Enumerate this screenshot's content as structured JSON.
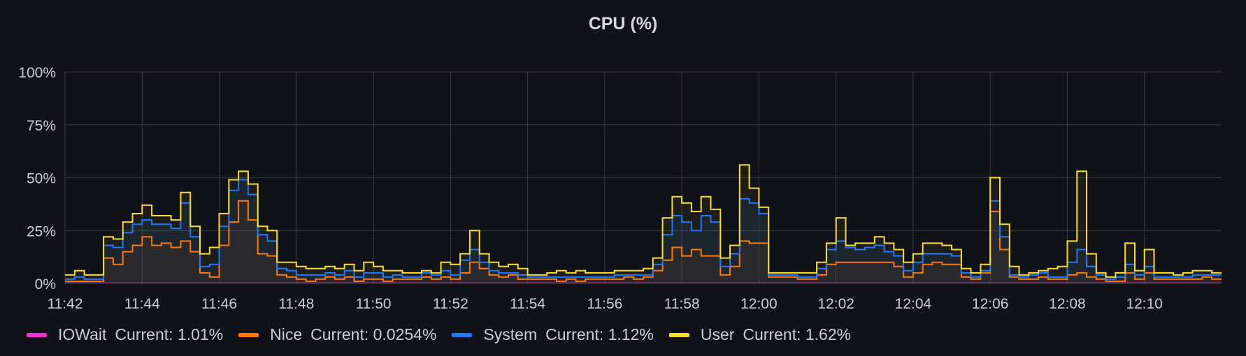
{
  "panel": {
    "title": "CPU (%)"
  },
  "chart_data": {
    "type": "area",
    "title": "CPU (%)",
    "stacked": true,
    "y_ticks": [
      "0%",
      "25%",
      "50%",
      "75%",
      "100%"
    ],
    "ylim": [
      0,
      100
    ],
    "x_ticks": [
      "11:42",
      "11:44",
      "11:46",
      "11:48",
      "11:50",
      "11:52",
      "11:54",
      "11:56",
      "11:58",
      "12:00",
      "12:02",
      "12:04",
      "12:06",
      "12:08",
      "12:10"
    ],
    "x_tick_minutes": [
      702,
      704,
      706,
      708,
      710,
      712,
      714,
      716,
      718,
      720,
      722,
      724,
      726,
      728,
      730
    ],
    "xlim_minutes": [
      702,
      732
    ],
    "legend_placement": "bottom-left",
    "grid": true,
    "samples": [
      {
        "t": 702.0,
        "n": 1,
        "s": 2,
        "u": 4
      },
      {
        "t": 702.25,
        "n": 1,
        "s": 3,
        "u": 6
      },
      {
        "t": 702.5,
        "n": 1,
        "s": 2,
        "u": 4
      },
      {
        "t": 702.75,
        "n": 1,
        "s": 2,
        "u": 4
      },
      {
        "t": 703.0,
        "n": 12,
        "s": 18,
        "u": 22
      },
      {
        "t": 703.25,
        "n": 9,
        "s": 17,
        "u": 21
      },
      {
        "t": 703.5,
        "n": 15,
        "s": 24,
        "u": 29
      },
      {
        "t": 703.75,
        "n": 18,
        "s": 28,
        "u": 33
      },
      {
        "t": 704.0,
        "n": 22,
        "s": 30,
        "u": 37
      },
      {
        "t": 704.25,
        "n": 18,
        "s": 28,
        "u": 32
      },
      {
        "t": 704.5,
        "n": 19,
        "s": 28,
        "u": 32
      },
      {
        "t": 704.75,
        "n": 17,
        "s": 26,
        "u": 30
      },
      {
        "t": 705.0,
        "n": 20,
        "s": 38,
        "u": 43
      },
      {
        "t": 705.25,
        "n": 15,
        "s": 22,
        "u": 27
      },
      {
        "t": 705.5,
        "n": 5,
        "s": 8,
        "u": 14
      },
      {
        "t": 705.75,
        "n": 3,
        "s": 9,
        "u": 17
      },
      {
        "t": 706.0,
        "n": 18,
        "s": 27,
        "u": 33
      },
      {
        "t": 706.25,
        "n": 29,
        "s": 44,
        "u": 49
      },
      {
        "t": 706.5,
        "n": 39,
        "s": 49,
        "u": 53
      },
      {
        "t": 706.75,
        "n": 30,
        "s": 42,
        "u": 47
      },
      {
        "t": 707.0,
        "n": 14,
        "s": 23,
        "u": 27
      },
      {
        "t": 707.25,
        "n": 13,
        "s": 20,
        "u": 25
      },
      {
        "t": 707.5,
        "n": 4,
        "s": 7,
        "u": 10
      },
      {
        "t": 707.75,
        "n": 3,
        "s": 6,
        "u": 10
      },
      {
        "t": 708.0,
        "n": 2,
        "s": 4,
        "u": 8
      },
      {
        "t": 708.25,
        "n": 1,
        "s": 4,
        "u": 7
      },
      {
        "t": 708.5,
        "n": 2,
        "s": 4,
        "u": 7
      },
      {
        "t": 708.75,
        "n": 3,
        "s": 5,
        "u": 8
      },
      {
        "t": 709.0,
        "n": 2,
        "s": 4,
        "u": 7
      },
      {
        "t": 709.25,
        "n": 3,
        "s": 6,
        "u": 9
      },
      {
        "t": 709.5,
        "n": 1,
        "s": 3,
        "u": 6
      },
      {
        "t": 709.75,
        "n": 2,
        "s": 5,
        "u": 10
      },
      {
        "t": 710.0,
        "n": 2,
        "s": 5,
        "u": 8
      },
      {
        "t": 710.25,
        "n": 1,
        "s": 3,
        "u": 6
      },
      {
        "t": 710.5,
        "n": 2,
        "s": 4,
        "u": 6
      },
      {
        "t": 710.75,
        "n": 2,
        "s": 3,
        "u": 5
      },
      {
        "t": 711.0,
        "n": 2,
        "s": 3,
        "u": 5
      },
      {
        "t": 711.25,
        "n": 3,
        "s": 5,
        "u": 6
      },
      {
        "t": 711.5,
        "n": 2,
        "s": 4,
        "u": 5
      },
      {
        "t": 711.75,
        "n": 3,
        "s": 6,
        "u": 10
      },
      {
        "t": 712.0,
        "n": 2,
        "s": 4,
        "u": 9
      },
      {
        "t": 712.25,
        "n": 5,
        "s": 11,
        "u": 14
      },
      {
        "t": 712.5,
        "n": 10,
        "s": 16,
        "u": 25
      },
      {
        "t": 712.75,
        "n": 7,
        "s": 10,
        "u": 14
      },
      {
        "t": 713.0,
        "n": 4,
        "s": 6,
        "u": 10
      },
      {
        "t": 713.25,
        "n": 3,
        "s": 5,
        "u": 8
      },
      {
        "t": 713.5,
        "n": 4,
        "s": 5,
        "u": 9
      },
      {
        "t": 713.75,
        "n": 2,
        "s": 4,
        "u": 7
      },
      {
        "t": 714.0,
        "n": 2,
        "s": 3,
        "u": 4
      },
      {
        "t": 714.25,
        "n": 2,
        "s": 3,
        "u": 4
      },
      {
        "t": 714.5,
        "n": 2,
        "s": 3,
        "u": 5
      },
      {
        "t": 714.75,
        "n": 1,
        "s": 3,
        "u": 6
      },
      {
        "t": 715.0,
        "n": 2,
        "s": 3,
        "u": 5
      },
      {
        "t": 715.25,
        "n": 1,
        "s": 3,
        "u": 6
      },
      {
        "t": 715.5,
        "n": 2,
        "s": 3,
        "u": 5
      },
      {
        "t": 715.75,
        "n": 2,
        "s": 3,
        "u": 5
      },
      {
        "t": 716.0,
        "n": 2,
        "s": 3,
        "u": 5
      },
      {
        "t": 716.25,
        "n": 2,
        "s": 4,
        "u": 6
      },
      {
        "t": 716.5,
        "n": 3,
        "s": 4,
        "u": 6
      },
      {
        "t": 716.75,
        "n": 2,
        "s": 4,
        "u": 6
      },
      {
        "t": 717.0,
        "n": 3,
        "s": 4,
        "u": 7
      },
      {
        "t": 717.25,
        "n": 6,
        "s": 9,
        "u": 12
      },
      {
        "t": 717.5,
        "n": 11,
        "s": 23,
        "u": 31
      },
      {
        "t": 717.75,
        "n": 17,
        "s": 32,
        "u": 41
      },
      {
        "t": 718.0,
        "n": 13,
        "s": 29,
        "u": 38
      },
      {
        "t": 718.25,
        "n": 16,
        "s": 25,
        "u": 34
      },
      {
        "t": 718.5,
        "n": 13,
        "s": 32,
        "u": 41
      },
      {
        "t": 718.75,
        "n": 13,
        "s": 29,
        "u": 35
      },
      {
        "t": 719.0,
        "n": 4,
        "s": 8,
        "u": 12
      },
      {
        "t": 719.25,
        "n": 8,
        "s": 14,
        "u": 18
      },
      {
        "t": 719.5,
        "n": 20,
        "s": 40,
        "u": 56
      },
      {
        "t": 719.75,
        "n": 19,
        "s": 38,
        "u": 45
      },
      {
        "t": 720.0,
        "n": 19,
        "s": 33,
        "u": 36
      },
      {
        "t": 720.25,
        "n": 3,
        "s": 4,
        "u": 5
      },
      {
        "t": 720.5,
        "n": 3,
        "s": 4,
        "u": 5
      },
      {
        "t": 720.75,
        "n": 3,
        "s": 4,
        "u": 5
      },
      {
        "t": 721.0,
        "n": 2,
        "s": 3,
        "u": 5
      },
      {
        "t": 721.25,
        "n": 2,
        "s": 3,
        "u": 5
      },
      {
        "t": 721.5,
        "n": 4,
        "s": 7,
        "u": 10
      },
      {
        "t": 721.75,
        "n": 9,
        "s": 16,
        "u": 19
      },
      {
        "t": 722.0,
        "n": 10,
        "s": 20,
        "u": 31
      },
      {
        "t": 722.25,
        "n": 10,
        "s": 17,
        "u": 18
      },
      {
        "t": 722.5,
        "n": 10,
        "s": 16,
        "u": 19
      },
      {
        "t": 722.75,
        "n": 10,
        "s": 17,
        "u": 19
      },
      {
        "t": 723.0,
        "n": 10,
        "s": 18,
        "u": 22
      },
      {
        "t": 723.25,
        "n": 10,
        "s": 15,
        "u": 19
      },
      {
        "t": 723.5,
        "n": 8,
        "s": 13,
        "u": 16
      },
      {
        "t": 723.75,
        "n": 3,
        "s": 6,
        "u": 10
      },
      {
        "t": 724.0,
        "n": 5,
        "s": 10,
        "u": 14
      },
      {
        "t": 724.25,
        "n": 9,
        "s": 14,
        "u": 19
      },
      {
        "t": 724.5,
        "n": 10,
        "s": 14,
        "u": 19
      },
      {
        "t": 724.75,
        "n": 9,
        "s": 14,
        "u": 18
      },
      {
        "t": 725.0,
        "n": 9,
        "s": 13,
        "u": 16
      },
      {
        "t": 725.25,
        "n": 3,
        "s": 5,
        "u": 7
      },
      {
        "t": 725.5,
        "n": 2,
        "s": 3,
        "u": 5
      },
      {
        "t": 725.75,
        "n": 5,
        "s": 6,
        "u": 9
      },
      {
        "t": 726.0,
        "n": 34,
        "s": 39,
        "u": 50
      },
      {
        "t": 726.25,
        "n": 16,
        "s": 22,
        "u": 28
      },
      {
        "t": 726.5,
        "n": 3,
        "s": 4,
        "u": 8
      },
      {
        "t": 726.75,
        "n": 2,
        "s": 3,
        "u": 4
      },
      {
        "t": 727.0,
        "n": 2,
        "s": 4,
        "u": 5
      },
      {
        "t": 727.25,
        "n": 3,
        "s": 5,
        "u": 6
      },
      {
        "t": 727.5,
        "n": 2,
        "s": 3,
        "u": 7
      },
      {
        "t": 727.75,
        "n": 2,
        "s": 3,
        "u": 8
      },
      {
        "t": 728.0,
        "n": 4,
        "s": 10,
        "u": 20
      },
      {
        "t": 728.25,
        "n": 5,
        "s": 16,
        "u": 53
      },
      {
        "t": 728.5,
        "n": 3,
        "s": 8,
        "u": 14
      },
      {
        "t": 728.75,
        "n": 2,
        "s": 4,
        "u": 5
      },
      {
        "t": 729.0,
        "n": 1,
        "s": 2,
        "u": 3
      },
      {
        "t": 729.25,
        "n": 1,
        "s": 3,
        "u": 5
      },
      {
        "t": 729.5,
        "n": 5,
        "s": 9,
        "u": 19
      },
      {
        "t": 729.75,
        "n": 2,
        "s": 4,
        "u": 6
      },
      {
        "t": 730.0,
        "n": 5,
        "s": 8,
        "u": 16
      },
      {
        "t": 730.25,
        "n": 2,
        "s": 3,
        "u": 5
      },
      {
        "t": 730.5,
        "n": 2,
        "s": 3,
        "u": 5
      },
      {
        "t": 730.75,
        "n": 2,
        "s": 3,
        "u": 4
      },
      {
        "t": 731.0,
        "n": 2,
        "s": 3,
        "u": 5
      },
      {
        "t": 731.25,
        "n": 2,
        "s": 4,
        "u": 6
      },
      {
        "t": 731.5,
        "n": 3,
        "s": 4,
        "u": 6
      },
      {
        "t": 731.75,
        "n": 2,
        "s": 4,
        "u": 5
      }
    ],
    "series": [
      {
        "name": "IOWait",
        "key": "io",
        "color": "#f030d2",
        "current": "Current: 1.01%"
      },
      {
        "name": "Nice",
        "key": "n",
        "color": "#ff780a",
        "current": "Current: 0.0254%"
      },
      {
        "name": "System",
        "key": "s",
        "color": "#1f78ff",
        "current": "Current: 1.12%"
      },
      {
        "name": "User",
        "key": "u",
        "color": "#fade2a",
        "current": "Current: 1.62%"
      }
    ]
  },
  "legend": {
    "items": [
      {
        "name": "IOWait",
        "current": "Current: 1.01%",
        "color": "#f030d2"
      },
      {
        "name": "Nice",
        "current": "Current: 0.0254%",
        "color": "#ff780a"
      },
      {
        "name": "System",
        "current": "Current: 1.12%",
        "color": "#1f78ff"
      },
      {
        "name": "User",
        "current": "Current: 1.62%",
        "color": "#fade2a"
      }
    ]
  }
}
